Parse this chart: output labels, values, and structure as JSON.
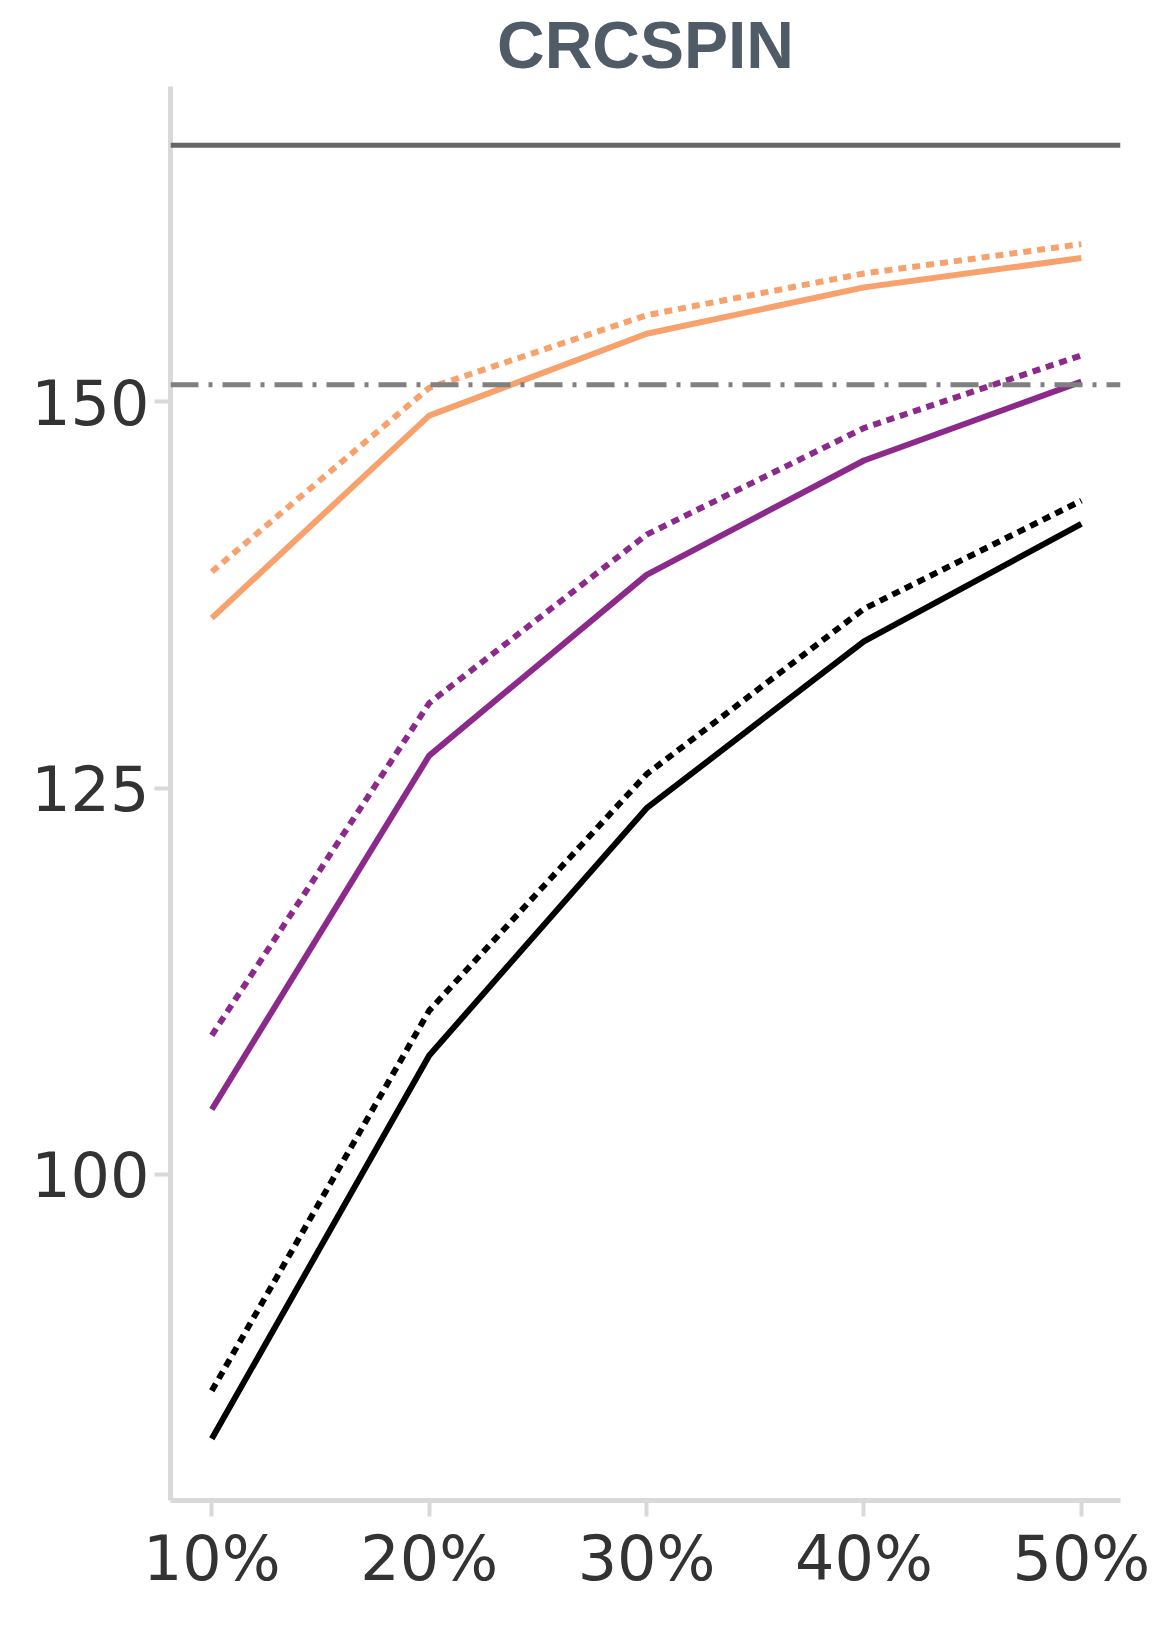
{
  "chart_data": {
    "type": "line",
    "title": "CRCSPIN",
    "categories": [
      "10%",
      "20%",
      "30%",
      "40%",
      "50%"
    ],
    "series": [
      {
        "color": "#f7a26c",
        "line_style": "solid",
        "values": [
          136.0,
          149.1,
          154.4,
          157.4,
          159.3
        ]
      },
      {
        "color": "#f7a26c",
        "line_style": "dashed",
        "values": [
          139.0,
          150.9,
          155.6,
          158.3,
          160.2
        ]
      },
      {
        "color": "#8c2a8c",
        "line_style": "solid",
        "values": [
          104.2,
          127.1,
          138.8,
          146.2,
          151.3
        ]
      },
      {
        "color": "#8c2a8c",
        "line_style": "dashed",
        "values": [
          109.0,
          130.5,
          141.4,
          148.3,
          153.0
        ]
      },
      {
        "color": "#000000",
        "line_style": "solid",
        "values": [
          82.9,
          107.7,
          123.7,
          134.5,
          142.1
        ]
      },
      {
        "color": "#000000",
        "line_style": "dashed",
        "values": [
          86.0,
          110.6,
          125.9,
          136.6,
          143.6
        ]
      }
    ],
    "ref_lines": [
      {
        "axis": "y",
        "value": 166.6,
        "color": "#666666",
        "line_style": "solid"
      },
      {
        "axis": "y",
        "value": 151.1,
        "color": "#808080",
        "line_style": "dashdot"
      }
    ],
    "ylim": [
      78.9,
      170.4
    ],
    "yticks": [
      100,
      125,
      150
    ],
    "marker": "none"
  }
}
